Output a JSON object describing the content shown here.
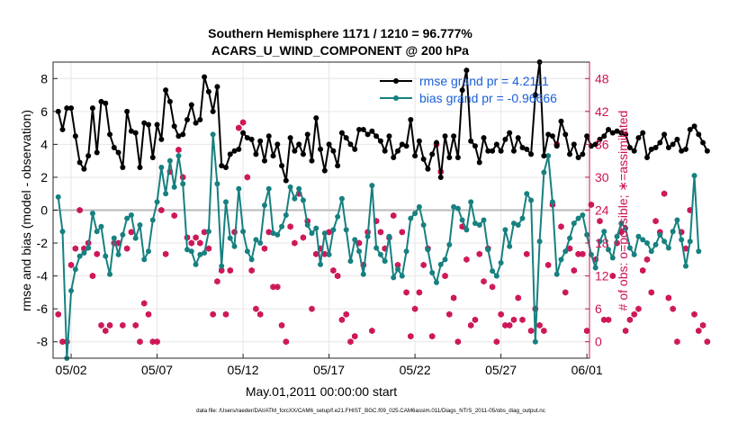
{
  "title_line1": "Southern Hemisphere 1171 / 1210 = 96.777%",
  "title_line2": "ACARS_U_WIND_COMPONENT @ 200 hPa",
  "footer": "data file: /Users/raeder/DAI/ATM_forcXX/CAM6_setup/f.e21.FHIST_BGC.f09_025.CAM6assim.011/Diags_NTrS_2011-05/obs_diag_output.nc",
  "chart_data": {
    "type": "line",
    "xlabel": "May.01,2011 00:00:00 start",
    "ylabel": "rmse and bias (model - observation)",
    "ylabel_right": "# of obs: o=possible; ∗=assimilated",
    "xlim": [
      0.7,
      31.9
    ],
    "ylim": [
      -9,
      9
    ],
    "ylim_right": [
      -3,
      51
    ],
    "x_tick_values": [
      1.75,
      6.75,
      11.75,
      16.75,
      21.75,
      26.75,
      31.75
    ],
    "x_tick_labels": [
      "05/02",
      "05/07",
      "05/12",
      "05/17",
      "05/22",
      "05/27",
      "06/01"
    ],
    "y_ticks": [
      -8,
      -6,
      -4,
      -2,
      0,
      2,
      4,
      6,
      8
    ],
    "y_ticks_right": [
      0,
      6,
      12,
      18,
      24,
      30,
      36,
      42,
      48
    ],
    "colors": {
      "rmse": "#000000",
      "bias": "#178080",
      "counts": "#cc1155",
      "zero_line": "#b8b8b8"
    },
    "legend": [
      "rmse grand pr = 4.2111",
      "bias grand pr = -0.96666"
    ],
    "legend_placement": "top-right",
    "x_start": 1.0,
    "x_step": 0.25,
    "series": [
      {
        "name": "rmse grand pr = 4.2111",
        "values": [
          6.0,
          4.9,
          6.2,
          6.2,
          4.5,
          2.9,
          2.5,
          3.3,
          6.2,
          3.5,
          6.6,
          6.5,
          4.6,
          3.8,
          3.5,
          2.6,
          6.0,
          4.8,
          4.7,
          2.6,
          5.3,
          5.2,
          3.2,
          5.2,
          4.3,
          7.3,
          6.6,
          5.1,
          4.5,
          4.6,
          5.5,
          6.4,
          5.3,
          5.5,
          8.1,
          7.2,
          6.0,
          7.5,
          2.7,
          2.6,
          3.4,
          3.6,
          3.7,
          4.7,
          4.4,
          4.3,
          3.4,
          4.2,
          3.0,
          4.5,
          3.3,
          4.0,
          2.7,
          1.8,
          4.4,
          3.6,
          4.0,
          3.4,
          4.6,
          3.0,
          5.6,
          3.7,
          2.4,
          4.0,
          3.6,
          2.7,
          4.7,
          4.4,
          4.0,
          3.7,
          4.9,
          4.9,
          4.6,
          4.8,
          4.5,
          4.2,
          3.6,
          4.5,
          3.2,
          3.6,
          4.0,
          3.9,
          5.5,
          3.3,
          4.2,
          3.1,
          2.5,
          3.4,
          4.1,
          2.0,
          4.5,
          3.2,
          4.5,
          3.2,
          7.3,
          8.5,
          4.2,
          3.9,
          2.9,
          4.4,
          3.6,
          3.6,
          4.0,
          3.6,
          4.3,
          4.7,
          3.6,
          4.4,
          3.8,
          3.7,
          3.4,
          7.0,
          9.0,
          3.3,
          4.6,
          4.5,
          3.9,
          5.4,
          4.6,
          3.4,
          4.0,
          3.2,
          3.4,
          4.5,
          3.9,
          4.0,
          4.3,
          4.5,
          4.9,
          4.7,
          4.8,
          4.7,
          4.6,
          3.8,
          3.6,
          4.4,
          4.7,
          3.2,
          3.7,
          3.8,
          4.1,
          4.6,
          3.8,
          4.0,
          4.3,
          3.6,
          3.7,
          4.9,
          5.1,
          4.6,
          4.1,
          3.6
        ]
      },
      {
        "name": "bias grand pr = -0.96666",
        "values": [
          0.8,
          -1.3,
          -9.0,
          -4.9,
          -3.6,
          -2.8,
          -2.6,
          -2.3,
          -0.2,
          -1.3,
          -1.0,
          -2.8,
          -3.9,
          -1.7,
          -2.7,
          -1.5,
          -0.5,
          -0.3,
          -1.7,
          -0.9,
          -3.0,
          -2.5,
          -0.6,
          0.5,
          2.6,
          1.0,
          3.0,
          1.4,
          3.3,
          1.6,
          -2.4,
          -2.5,
          -3.3,
          -2.7,
          -2.6,
          -1.3,
          4.6,
          1.6,
          -3.4,
          0.5,
          -1.7,
          -2.2,
          1.3,
          -1.3,
          -2.5,
          -3.0,
          -1.8,
          -2.0,
          0.3,
          1.3,
          -1.4,
          -1.5,
          -1.0,
          -0.3,
          1.4,
          0.7,
          1.3,
          0.6,
          -0.9,
          -1.4,
          -1.1,
          -3.3,
          -1.4,
          -2.7,
          -1.2,
          -0.4,
          0.7,
          -1.2,
          -3.1,
          -1.8,
          -2.5,
          -3.9,
          -1.6,
          1.5,
          -2.3,
          -2.7,
          -3.1,
          -1.6,
          -4.1,
          -3.6,
          -4.0,
          -2.5,
          -0.5,
          -0.2,
          0.2,
          -0.9,
          -2.4,
          -3.8,
          -4.4,
          -3.3,
          -3.0,
          -2.1,
          0.2,
          0.1,
          -0.6,
          -1.2,
          0.5,
          -0.8,
          -0.9,
          -0.6,
          -2.4,
          -3.7,
          -4.0,
          -3.2,
          -1.2,
          -2.2,
          -0.8,
          -0.9,
          -0.5,
          1.0,
          0.6,
          -8.0,
          -1.9,
          2.3,
          3.3,
          0.5,
          -3.9,
          -3.0,
          -2.5,
          -1.7,
          -0.8,
          -0.5,
          -0.3,
          -1.5,
          -2.7,
          -3.5,
          -1.9,
          -1.3,
          -2.4,
          -2.9,
          -1.6,
          -0.8,
          -1.1,
          -2.3,
          -2.7,
          -1.6,
          -1.8,
          -2.0,
          -2.5,
          -2.1,
          -1.5,
          -1.9,
          -2.3,
          -1.3,
          -0.6,
          -1.8,
          -3.4,
          -1.9,
          2.1,
          -2.5
        ]
      }
    ],
    "counts_possible": {
      "name": "possible",
      "values": [
        5,
        0,
        0,
        14,
        17,
        24,
        17,
        18,
        12,
        16,
        3,
        2,
        3,
        18,
        18,
        3,
        17,
        20,
        3,
        0,
        7,
        5,
        0,
        0,
        24,
        16,
        31,
        23,
        35,
        30,
        19,
        18,
        19,
        18,
        20,
        17,
        5,
        11,
        13,
        5,
        13,
        20,
        39,
        40,
        30,
        13,
        6,
        5,
        17,
        20,
        10,
        10,
        3,
        0,
        21,
        18,
        27,
        19,
        22,
        6,
        16,
        17,
        16,
        20,
        13,
        12,
        4,
        5,
        0,
        1,
        18,
        14,
        20,
        2,
        22,
        20,
        17,
        19,
        23,
        14,
        20,
        9,
        1,
        6,
        9,
        14,
        17,
        1,
        36,
        31,
        12,
        5,
        8,
        0,
        21,
        15,
        3,
        4,
        16,
        11,
        17,
        10,
        0,
        5,
        3,
        3,
        4,
        8,
        4,
        16,
        2,
        6,
        3,
        2,
        14,
        25,
        36,
        21,
        9,
        17,
        13,
        16,
        16,
        2,
        25,
        15,
        22,
        4,
        4,
        12,
        18,
        20,
        2,
        4,
        5,
        6,
        13,
        15,
        9,
        22,
        20,
        27,
        8,
        6,
        0,
        20,
        17,
        24,
        5,
        2,
        3,
        0
      ]
    },
    "counts_assimilated": {
      "name": "assimilated",
      "values": [
        5,
        0,
        0,
        14,
        17,
        24,
        17,
        18,
        12,
        16,
        3,
        2,
        3,
        18,
        18,
        3,
        17,
        20,
        3,
        0,
        7,
        5,
        0,
        0,
        24,
        16,
        31,
        23,
        35,
        30,
        19,
        18,
        19,
        18,
        20,
        17,
        5,
        11,
        13,
        5,
        13,
        20,
        39,
        40,
        30,
        13,
        6,
        5,
        17,
        20,
        10,
        10,
        3,
        0,
        21,
        18,
        27,
        19,
        22,
        6,
        16,
        17,
        16,
        20,
        13,
        12,
        4,
        5,
        0,
        1,
        18,
        14,
        20,
        2,
        22,
        20,
        17,
        19,
        23,
        14,
        20,
        9,
        1,
        6,
        9,
        14,
        17,
        1,
        36,
        31,
        12,
        5,
        8,
        0,
        21,
        15,
        3,
        4,
        16,
        11,
        17,
        10,
        0,
        5,
        3,
        3,
        4,
        8,
        4,
        16,
        2,
        6,
        3,
        2,
        14,
        25,
        36,
        21,
        9,
        17,
        13,
        16,
        16,
        2,
        25,
        15,
        22,
        4,
        4,
        12,
        18,
        20,
        2,
        4,
        5,
        6,
        13,
        15,
        9,
        22,
        20,
        27,
        8,
        6,
        0,
        20,
        17,
        24,
        5,
        2,
        3,
        0
      ]
    }
  }
}
